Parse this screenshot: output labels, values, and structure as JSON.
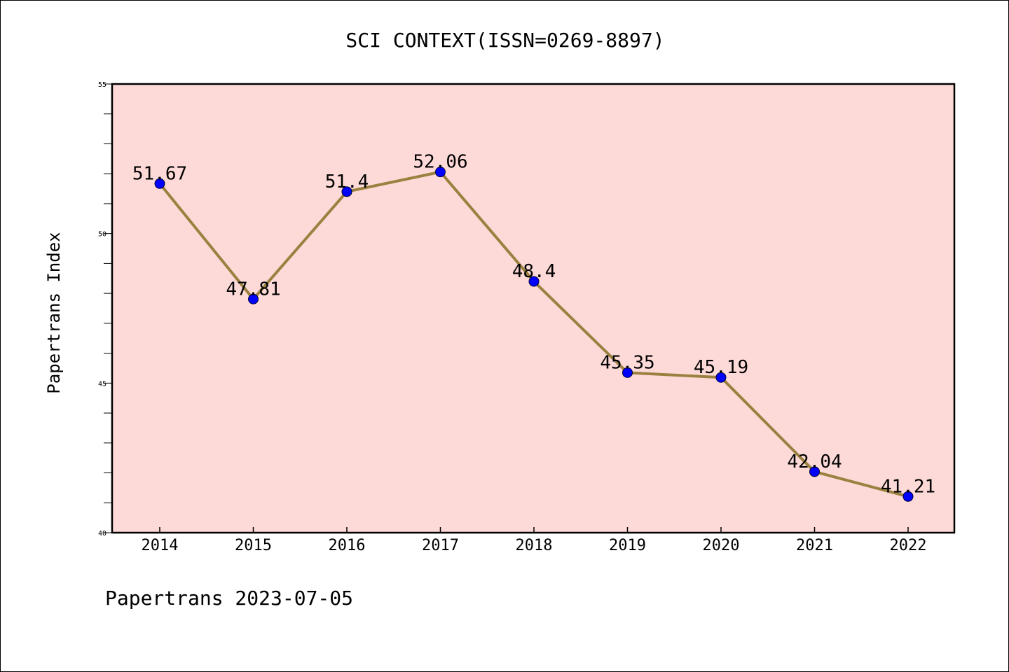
{
  "chart_data": {
    "type": "line",
    "title": "SCI CONTEXT(ISSN=0269-8897)",
    "xlabel": "",
    "ylabel": "Papertrans Index",
    "categories": [
      "2014",
      "2015",
      "2016",
      "2017",
      "2018",
      "2019",
      "2020",
      "2021",
      "2022"
    ],
    "values": [
      51.67,
      47.81,
      51.4,
      52.06,
      48.4,
      45.35,
      45.19,
      42.04,
      41.21
    ],
    "data_labels": [
      "51.67",
      "47.81",
      "51.4",
      "52.06",
      "48.4",
      "45.35",
      "45.19",
      "42.04",
      "41.21"
    ],
    "ylim": [
      40,
      55
    ],
    "y_ticks": [
      "40",
      "45",
      "50",
      "55"
    ],
    "grid": false,
    "footer": "Papertrans 2023-07-05",
    "colors": {
      "plot_background": "#fddad8",
      "line": "#9b8140",
      "marker": "#0000ff"
    }
  }
}
